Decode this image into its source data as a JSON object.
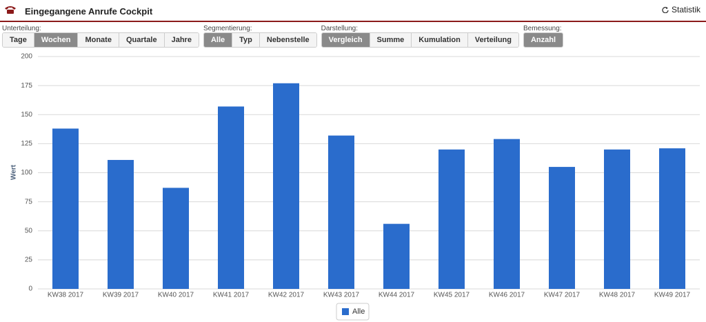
{
  "header": {
    "title": "Eingegangene Anrufe Cockpit",
    "action": "Statistik"
  },
  "toolbar": {
    "groups": [
      {
        "label": "Unterteilung:",
        "buttons": [
          "Tage",
          "Wochen",
          "Monate",
          "Quartale",
          "Jahre"
        ],
        "active": 1
      },
      {
        "label": "Segmentierung:",
        "buttons": [
          "Alle",
          "Typ",
          "Nebenstelle"
        ],
        "active": 0
      },
      {
        "label": "Darstellung:",
        "buttons": [
          "Vergleich",
          "Summe",
          "Kumulation",
          "Verteilung"
        ],
        "active": 0
      },
      {
        "label": "Bemessung:",
        "buttons": [
          "Anzahl"
        ],
        "active": 0
      }
    ]
  },
  "chart_data": {
    "type": "bar",
    "y_label": "Wert",
    "categories": [
      "KW38 2017",
      "KW39 2017",
      "KW40 2017",
      "KW41 2017",
      "KW42 2017",
      "KW43 2017",
      "KW44 2017",
      "KW45 2017",
      "KW46 2017",
      "KW47 2017",
      "KW48 2017",
      "KW49 2017"
    ],
    "series": [
      {
        "name": "Alle",
        "color": "#2a6ccc",
        "values": [
          138,
          111,
          87,
          157,
          177,
          132,
          56,
          120,
          129,
          105,
          120,
          121
        ]
      }
    ],
    "ylim": [
      0,
      200
    ],
    "yticks": [
      0,
      25,
      50,
      75,
      100,
      125,
      150,
      175,
      200
    ],
    "grid": true
  }
}
